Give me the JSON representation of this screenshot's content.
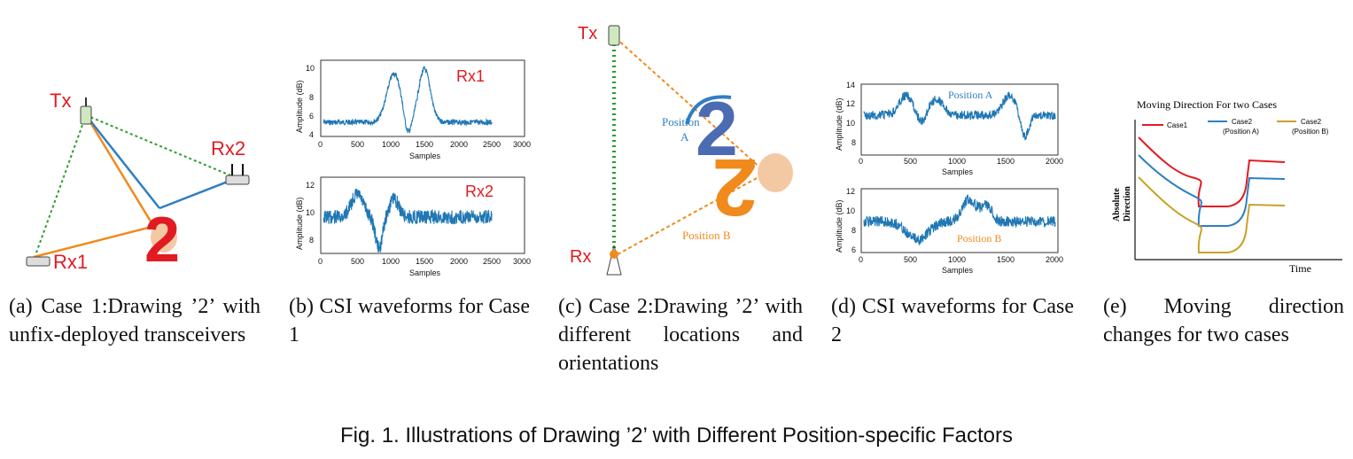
{
  "panel_a": {
    "tx": "Tx",
    "rx1": "Rx1",
    "rx2": "Rx2",
    "digit": "2",
    "caption": "(a) Case 1:Drawing ’2’ with unfix-deployed transceivers"
  },
  "panel_b": {
    "caption": "(b) CSI waveforms for Case 1",
    "top": {
      "label": "Rx1",
      "ylabel": "Amplitude (dB)",
      "xlabel": "Samples",
      "yticks": [
        "4",
        "6",
        "8",
        "10"
      ],
      "xticks": [
        "0",
        "500",
        "1000",
        "1500",
        "2000",
        "2500",
        "3000"
      ]
    },
    "bottom": {
      "label": "Rx2",
      "ylabel": "Amplitude (dB)",
      "xlabel": "Samples",
      "yticks": [
        "8",
        "10",
        "12"
      ],
      "xticks": [
        "0",
        "500",
        "1000",
        "1500",
        "2000",
        "2500",
        "3000"
      ]
    }
  },
  "panel_c": {
    "tx": "Tx",
    "rx": "Rx",
    "position_a_1": "Position",
    "position_a_2": "A",
    "position_b": "Position B",
    "digit": "2",
    "caption": "(c) Case 2:Drawing ’2’ with different locations and orientations"
  },
  "panel_d": {
    "caption": "(d) CSI waveforms for Case 2",
    "top": {
      "label": "Position A",
      "ylabel": "Amplitude (dB)",
      "xlabel": "Samples",
      "yticks": [
        "8",
        "10",
        "12",
        "14"
      ],
      "xticks": [
        "0",
        "500",
        "1000",
        "1500",
        "2000"
      ]
    },
    "bottom": {
      "label": "Position B",
      "ylabel": "Amplitude (dB)",
      "xlabel": "Samples",
      "yticks": [
        "6",
        "8",
        "10",
        "12"
      ],
      "xticks": [
        "0",
        "500",
        "1000",
        "1500",
        "2000"
      ]
    }
  },
  "panel_e": {
    "title": "Moving Direction For two Cases",
    "ylabel_1": "Absolute",
    "ylabel_2": "Direction",
    "xlabel": "Time",
    "legend": [
      {
        "name": "Case1",
        "sub": "",
        "color": "#e11b22"
      },
      {
        "name": "Case2",
        "sub": "(Position A)",
        "color": "#2f7fc1"
      },
      {
        "name": "Case2",
        "sub": "(Position B)",
        "color": "#c9a227"
      }
    ],
    "caption": "(e) Moving direction changes for two cases"
  },
  "figure_caption": "Fig. 1. Illustrations of Drawing ’2’ with Different Position-specific Factors",
  "colors": {
    "red": "#e11b22",
    "blue": "#2f7fc1",
    "orange": "#f08a1c",
    "green": "#2aa02a"
  }
}
